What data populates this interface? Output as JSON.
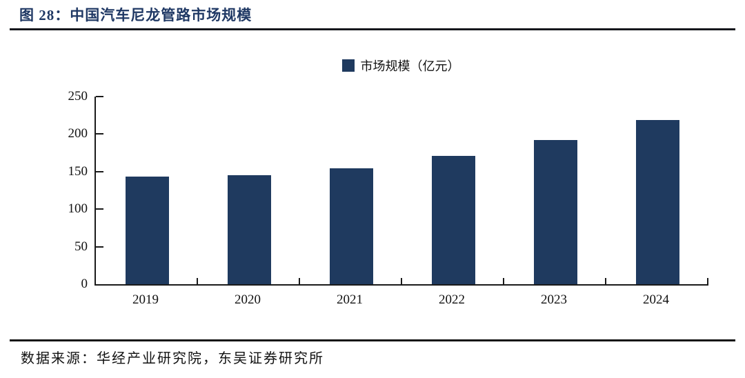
{
  "figure": {
    "title": "图 28：中国汽车尼龙管路市场规模",
    "source": "数据来源：华经产业研究院，东吴证券研究所"
  },
  "chart_data": {
    "type": "bar",
    "title": "图 28：中国汽车尼龙管路市场规模",
    "legend": [
      "市场规模（亿元）"
    ],
    "categories": [
      "2019",
      "2020",
      "2021",
      "2022",
      "2023",
      "2024"
    ],
    "values": [
      143,
      145,
      154,
      171,
      192,
      219
    ],
    "xlabel": "",
    "ylabel": "",
    "ylim": [
      0,
      250
    ],
    "yticks": [
      0,
      50,
      100,
      150,
      200,
      250
    ],
    "grid": false,
    "legend_position": "top-center",
    "bar_color": "#1F3A5F"
  },
  "colors": {
    "title_accent": "#1F3864",
    "bar": "#1F3A5F",
    "axis": "#1a1a1a",
    "rule": "#15171c"
  }
}
